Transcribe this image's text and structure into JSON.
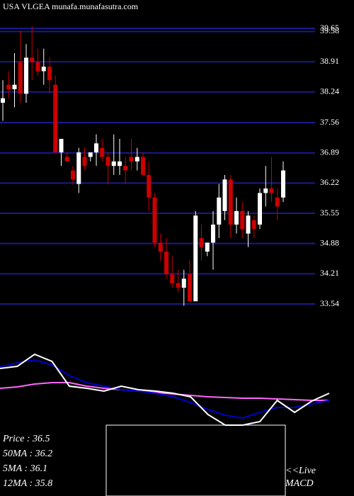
{
  "chart_data": {
    "type": "candlestick",
    "title": "USA VLGEA munafa.munafasutra.com",
    "ylim": [
      33.54,
      39.65
    ],
    "yticks": [
      33.54,
      34.21,
      34.88,
      35.55,
      36.22,
      36.89,
      37.56,
      38.24,
      38.91,
      39.58,
      39.65
    ],
    "grid": true,
    "up_color": "#ffffff",
    "down_color": "#cc0000",
    "grid_color": "#1a1a8c",
    "open": [
      38.0,
      38.4,
      38.3,
      38.9,
      38.2,
      39.0,
      38.9,
      38.7,
      38.8,
      38.4,
      36.9,
      36.8,
      36.5,
      36.2,
      36.8,
      36.8,
      36.9,
      37.0,
      36.8,
      36.6,
      36.6,
      36.6,
      36.8,
      36.7,
      36.8,
      36.4,
      35.9,
      34.9,
      34.7,
      34.2,
      34.0,
      33.9,
      34.2,
      33.6,
      35.0,
      34.7,
      34.9,
      35.3,
      35.6,
      36.3,
      35.3,
      35.6,
      35.1,
      35.4,
      35.3,
      36.0,
      36.1,
      35.9,
      35.9
    ],
    "high": [
      38.5,
      38.7,
      39.1,
      39.6,
      39.3,
      39.7,
      39.2,
      39.2,
      39.0,
      38.6,
      37.2,
      36.9,
      36.6,
      37.0,
      37.0,
      36.9,
      37.3,
      37.2,
      36.9,
      37.3,
      37.2,
      36.8,
      37.2,
      37.0,
      36.9,
      36.7,
      36.0,
      35.1,
      35.0,
      34.6,
      34.3,
      34.3,
      34.5,
      35.6,
      35.3,
      34.9,
      35.6,
      36.2,
      36.4,
      36.4,
      35.9,
      35.8,
      35.6,
      35.5,
      36.1,
      36.6,
      36.8,
      36.1,
      36.7
    ],
    "low": [
      37.6,
      38.1,
      37.9,
      38.0,
      38.0,
      38.5,
      38.6,
      38.4,
      38.2,
      36.9,
      36.6,
      36.7,
      36.2,
      36.0,
      36.5,
      36.7,
      36.6,
      36.7,
      36.2,
      36.4,
      36.4,
      36.2,
      36.5,
      36.5,
      36.4,
      35.6,
      34.8,
      34.5,
      34.1,
      33.9,
      33.8,
      33.5,
      33.6,
      33.6,
      34.5,
      34.6,
      34.3,
      35.0,
      35.4,
      35.0,
      35.1,
      35.0,
      34.8,
      35.0,
      35.2,
      35.7,
      35.8,
      35.4,
      35.8
    ],
    "close": [
      38.1,
      38.3,
      38.4,
      38.2,
      39.0,
      38.9,
      38.7,
      38.8,
      38.5,
      36.9,
      37.2,
      36.7,
      36.3,
      36.9,
      36.6,
      36.9,
      37.1,
      36.8,
      36.6,
      36.7,
      36.7,
      36.5,
      36.7,
      36.8,
      36.4,
      35.9,
      34.9,
      34.7,
      34.2,
      34.0,
      33.9,
      34.1,
      33.6,
      35.5,
      34.8,
      34.9,
      35.3,
      35.9,
      36.3,
      35.3,
      35.6,
      35.2,
      35.5,
      35.2,
      36.0,
      36.1,
      36.0,
      35.7,
      36.5
    ],
    "indicators": {
      "ylim": [
        0,
        120
      ],
      "series": [
        {
          "color": "#ff66ff",
          "values": [
            52,
            54,
            58,
            60,
            60,
            55,
            52,
            50,
            48,
            46,
            44,
            42,
            40,
            39,
            38,
            38,
            37,
            36,
            35,
            35
          ]
        },
        {
          "color": "#0000cc",
          "values": [
            82,
            88,
            92,
            85,
            70,
            60,
            55,
            50,
            48,
            45,
            40,
            32,
            22,
            14,
            10,
            18,
            25,
            25,
            30,
            35
          ]
        },
        {
          "color": "#ffffff",
          "values": [
            80,
            83,
            100,
            90,
            55,
            52,
            48,
            55,
            50,
            48,
            45,
            40,
            15,
            0,
            0,
            5,
            35,
            18,
            34,
            45
          ]
        }
      ]
    },
    "info": [
      "Price   : 36.5",
      "50MA : 36.2",
      "5MA : 36.1",
      "12MA : 35.8"
    ],
    "live": "<<Live",
    "macd": "MACD"
  }
}
